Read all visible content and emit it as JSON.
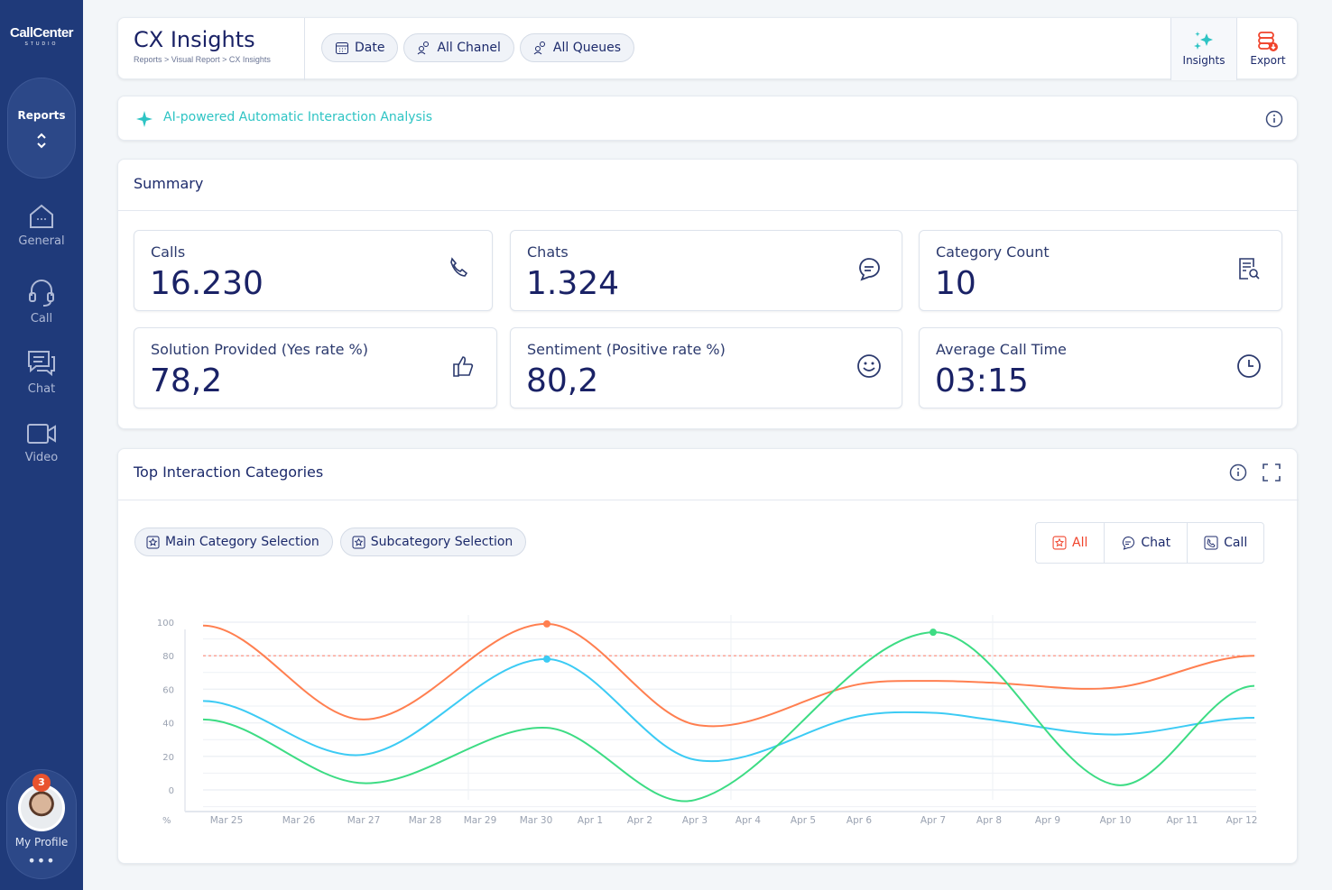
{
  "brand": {
    "logo": "CallCenter",
    "logo_sub": "STUDIO"
  },
  "sidebar": {
    "reports": "Reports",
    "items": [
      {
        "label": "General",
        "icon": "home-icon"
      },
      {
        "label": "Call",
        "icon": "headset-icon"
      },
      {
        "label": "Chat",
        "icon": "chat-icon"
      },
      {
        "label": "Video",
        "icon": "video-icon"
      }
    ],
    "profile": {
      "label": "My Profile",
      "badge": "3"
    }
  },
  "header": {
    "title": "CX Insights",
    "breadcrumb": "Reports >  Visual Report  > CX Insights",
    "filters": [
      "Date",
      "All Chanel",
      "All Queues"
    ],
    "insights": "Insights",
    "export": "Export"
  },
  "ai_banner": {
    "text": "AI-powered Automatic Interaction Analysis"
  },
  "summary": {
    "title": "Summary",
    "cards": [
      {
        "label": "Calls",
        "value": "16.230",
        "icon": "phone-icon"
      },
      {
        "label": "Chats",
        "value": "1.324",
        "icon": "chat-bubble-icon"
      },
      {
        "label": "Category Count",
        "value": "10",
        "icon": "document-search-icon"
      },
      {
        "label": "Solution Provided (Yes rate %)",
        "value": "78,2",
        "icon": "thumbs-up-icon"
      },
      {
        "label": "Sentiment (Positive rate %)",
        "value": "80,2",
        "icon": "smiley-icon"
      },
      {
        "label": "Average Call Time",
        "value": "03:15",
        "icon": "clock-icon"
      }
    ]
  },
  "categories": {
    "title": "Top Interaction Categories",
    "main_sel": "Main Category Selection",
    "sub_sel": "Subcategory Selection",
    "toggle": [
      "All",
      "Chat",
      "Call"
    ],
    "active_toggle": "All"
  },
  "colors": {
    "sidebar": "#1f3a7a",
    "accent": "#2ec4c4",
    "orange": "#ff7f50",
    "blue": "#3ccbf4",
    "green": "#3ddc84",
    "export": "#f0442c"
  },
  "chart_data": {
    "type": "line",
    "ylabel": "%",
    "yticks": [
      "100",
      "80",
      "60",
      "40",
      "20",
      "0"
    ],
    "ylim": [
      -10,
      100
    ],
    "grid": true,
    "categories": [
      "Mar 25",
      "Mar 26",
      "Mar 27",
      "Mar 28",
      "Mar 29",
      "Mar 30",
      "Apr 1",
      "Apr 2",
      "Apr 3",
      "Apr 4",
      "Apr 5",
      "Apr 6",
      "Apr 7",
      "Apr 8",
      "Apr 9",
      "Apr 10",
      "Apr 11",
      "Apr 12"
    ],
    "threshold": 80,
    "series": [
      {
        "color": "#ff7f50",
        "points": [
          [
            "Mar 25",
            98
          ],
          [
            "Mar 27",
            42
          ],
          [
            "Mar 30",
            99
          ],
          [
            "Apr 3",
            39
          ],
          [
            "Apr 6",
            63
          ],
          [
            "Apr 7",
            65
          ],
          [
            "Apr 8",
            64
          ],
          [
            "Apr 10",
            61
          ],
          [
            "Apr 12",
            80
          ]
        ],
        "marker": "Mar 30"
      },
      {
        "color": "#3ccbf4",
        "points": [
          [
            "Mar 25",
            53
          ],
          [
            "Mar 27",
            21
          ],
          [
            "Mar 30",
            78
          ],
          [
            "Apr 3",
            18
          ],
          [
            "Apr 6",
            44
          ],
          [
            "Apr 7",
            46
          ],
          [
            "Apr 8",
            42
          ],
          [
            "Apr 10",
            33
          ],
          [
            "Apr 12",
            43
          ]
        ],
        "marker": "Mar 30"
      },
      {
        "color": "#3ddc84",
        "points": [
          [
            "Mar 25",
            42
          ],
          [
            "Mar 27",
            4
          ],
          [
            "Mar 30",
            37
          ],
          [
            "Apr 3",
            -6
          ],
          [
            "Apr 7",
            94
          ],
          [
            "Apr 10",
            3
          ],
          [
            "Apr 12",
            62
          ]
        ],
        "marker": "Apr 7"
      }
    ]
  }
}
